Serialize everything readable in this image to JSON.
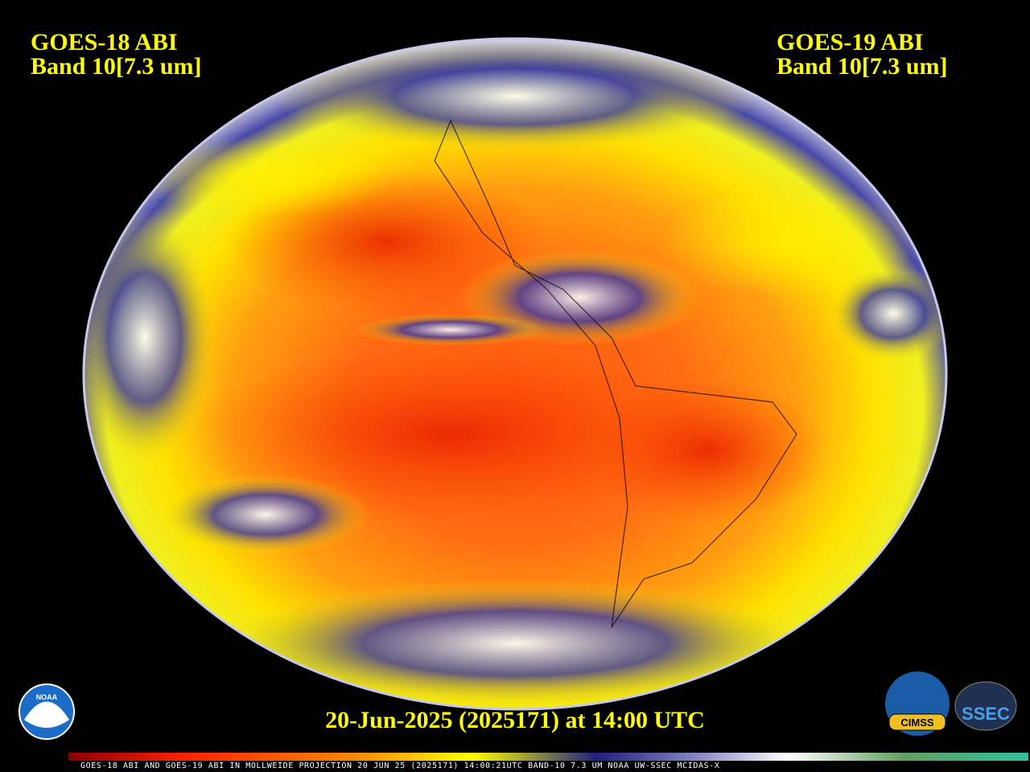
{
  "header": {
    "left": {
      "satellite": "GOES-18 ABI",
      "band": "Band 10[7.3 um]"
    },
    "right": {
      "satellite": "GOES-19 ABI",
      "band": "Band 10[7.3 um]"
    }
  },
  "footer": {
    "timestamp": "20-Jun-2025 (2025171) at 14:00 UTC"
  },
  "colorbar": {
    "caption": "GOES-18 ABI AND GOES-19 ABI IN MOLLWEIDE PROJECTION 20 JUN 25 (2025171) 14:00:21UTC BAND-10 7.3 UM NOAA UW-SSEC MCIDAS-X"
  },
  "logos": {
    "noaa": "NOAA",
    "cimss": "CIMSS",
    "ssec": "SSEC"
  }
}
